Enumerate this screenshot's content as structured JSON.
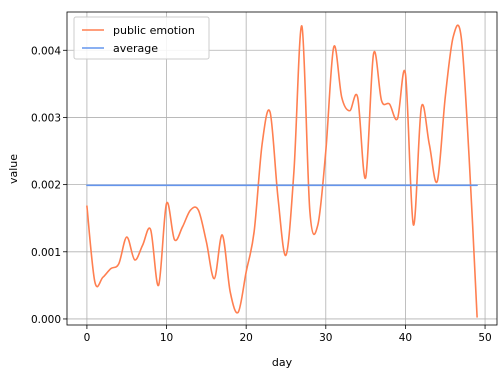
{
  "chart_data": {
    "type": "line",
    "title": "",
    "xlabel": "day",
    "ylabel": "value",
    "xlim": [
      -2.5,
      51.5
    ],
    "ylim": [
      -9e-05,
      0.00457
    ],
    "x_ticks": [
      0,
      10,
      20,
      30,
      40,
      50
    ],
    "x_tick_labels": [
      "0",
      "10",
      "20",
      "30",
      "40",
      "50"
    ],
    "y_ticks": [
      0.0,
      0.001,
      0.002,
      0.003,
      0.004
    ],
    "y_tick_labels": [
      "0.000",
      "0.001",
      "0.002",
      "0.003",
      "0.004"
    ],
    "grid": true,
    "legend_position": "upper-left",
    "series": [
      {
        "name": "public emotion",
        "color": "#ff7f50",
        "x": [
          0,
          1,
          2,
          3,
          4,
          5,
          6,
          7,
          8,
          9,
          10,
          11,
          12,
          13,
          14,
          15,
          16,
          17,
          18,
          19,
          20,
          21,
          22,
          23,
          24,
          25,
          26,
          27,
          28,
          29,
          30,
          31,
          32,
          33,
          34,
          35,
          36,
          37,
          38,
          39,
          40,
          41,
          42,
          43,
          44,
          45,
          46,
          47,
          48,
          49
        ],
        "y": [
          0.00168,
          0.00055,
          0.00062,
          0.00075,
          0.00082,
          0.00122,
          0.00088,
          0.0011,
          0.00133,
          0.0005,
          0.00172,
          0.00118,
          0.00137,
          0.00162,
          0.00162,
          0.00115,
          0.0006,
          0.00125,
          0.0004,
          0.0001,
          0.0007,
          0.0013,
          0.0026,
          0.00308,
          0.0018,
          0.00095,
          0.0022,
          0.00436,
          0.0016,
          0.0014,
          0.0025,
          0.00405,
          0.0033,
          0.0031,
          0.0033,
          0.0021,
          0.00395,
          0.00325,
          0.0032,
          0.00298,
          0.00365,
          0.0014,
          0.00315,
          0.0026,
          0.00205,
          0.0033,
          0.0042,
          0.0042,
          0.0024,
          3e-05
        ]
      },
      {
        "name": "average",
        "color": "#6495ed",
        "x": [
          0,
          49
        ],
        "y": [
          0.00199,
          0.00199
        ]
      }
    ]
  }
}
